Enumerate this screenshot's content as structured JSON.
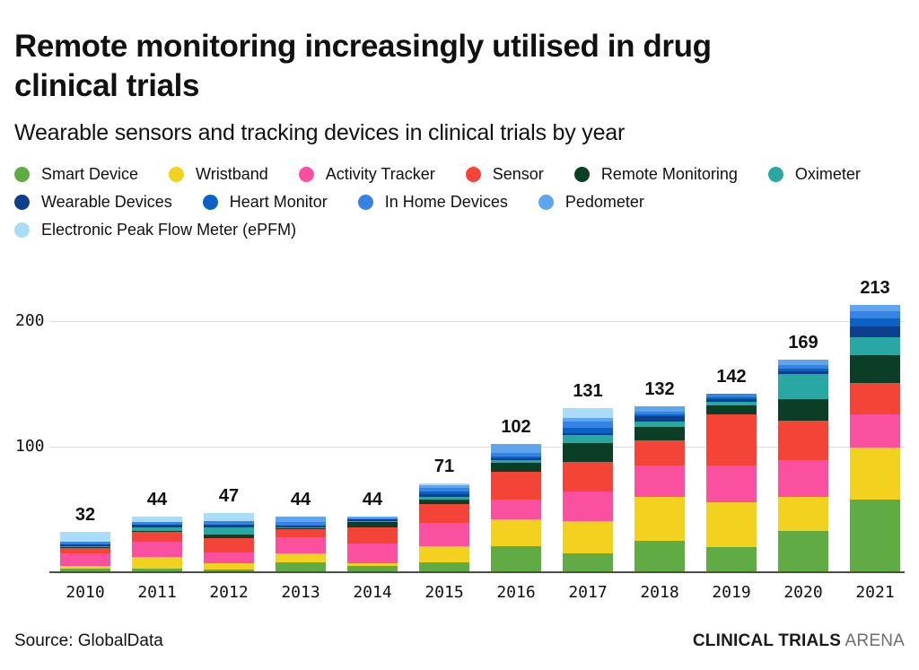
{
  "title": "Remote monitoring increasingly utilised in drug clinical trials",
  "subtitle": "Wearable sensors and tracking devices in clinical trials by year",
  "legend": {
    "rows": [
      [
        "Smart Device",
        "Wristband",
        "Activity Tracker",
        "Sensor",
        "Remote Monitoring",
        "Oximeter"
      ],
      [
        "Wearable Devices",
        "Heart Monitor",
        "In Home Devices",
        "Pedometer"
      ],
      [
        "Electronic Peak Flow Meter (ePFM)"
      ]
    ]
  },
  "chart_data": {
    "type": "bar",
    "stacked": true,
    "title": "Remote monitoring increasingly utilised in drug clinical trials",
    "subtitle": "Wearable sensors and tracking devices in clinical trials by year",
    "xlabel": "",
    "ylabel": "",
    "ylim": [
      0,
      220
    ],
    "yticks": [
      100,
      200
    ],
    "grid": "horizontal",
    "legend_position": "top",
    "categories": [
      "2010",
      "2011",
      "2012",
      "2013",
      "2014",
      "2015",
      "2016",
      "2017",
      "2018",
      "2019",
      "2020",
      "2021"
    ],
    "totals": [
      32,
      44,
      47,
      44,
      44,
      71,
      102,
      131,
      132,
      142,
      169,
      213
    ],
    "series": [
      {
        "name": "Smart Device",
        "color": "#61ab44",
        "values": [
          3,
          3,
          2,
          8,
          5,
          8,
          21,
          15,
          25,
          20,
          33,
          58
        ]
      },
      {
        "name": "Wristband",
        "color": "#f3d21f",
        "values": [
          2,
          9,
          5,
          7,
          2,
          13,
          21,
          26,
          35,
          36,
          27,
          41
        ]
      },
      {
        "name": "Activity Tracker",
        "color": "#fb509f",
        "values": [
          10,
          12,
          9,
          13,
          16,
          18,
          16,
          23,
          25,
          29,
          29,
          27
        ]
      },
      {
        "name": "Sensor",
        "color": "#f44437",
        "values": [
          4,
          8,
          11,
          6,
          13,
          15,
          22,
          24,
          20,
          41,
          32,
          25
        ]
      },
      {
        "name": "Remote Monitoring",
        "color": "#0b3e26",
        "values": [
          1,
          1,
          3,
          1,
          4,
          4,
          7,
          15,
          11,
          7,
          17,
          22
        ]
      },
      {
        "name": "Oximeter",
        "color": "#29a7a3",
        "values": [
          1,
          3,
          6,
          1,
          1,
          2,
          2,
          6,
          4,
          3,
          20,
          14
        ]
      },
      {
        "name": "Wearable Devices",
        "color": "#0d3f8e",
        "values": [
          1,
          2,
          2,
          1,
          1,
          2,
          2,
          2,
          4,
          2,
          2,
          9
        ]
      },
      {
        "name": "Heart Monitor",
        "color": "#0b62c4",
        "values": [
          0,
          0,
          0,
          0,
          0,
          2,
          1,
          4,
          2,
          1,
          2,
          6
        ]
      },
      {
        "name": "In Home Devices",
        "color": "#3584e4",
        "values": [
          2,
          2,
          3,
          3,
          1,
          3,
          3,
          5,
          2,
          3,
          3,
          6
        ]
      },
      {
        "name": "Pedometer",
        "color": "#5fa4ef",
        "values": [
          0,
          0,
          0,
          4,
          1,
          2,
          7,
          3,
          4,
          0,
          4,
          5
        ]
      },
      {
        "name": "Electronic Peak Flow Meter (ePFM)",
        "color": "#a9dcf7",
        "values": [
          8,
          4,
          6,
          0,
          0,
          2,
          0,
          8,
          0,
          0,
          0,
          0
        ]
      }
    ]
  },
  "footer": {
    "source": "Source: GlobalData",
    "brand_bold": "CLINICAL TRIALS",
    "brand_light": "ARENA"
  }
}
